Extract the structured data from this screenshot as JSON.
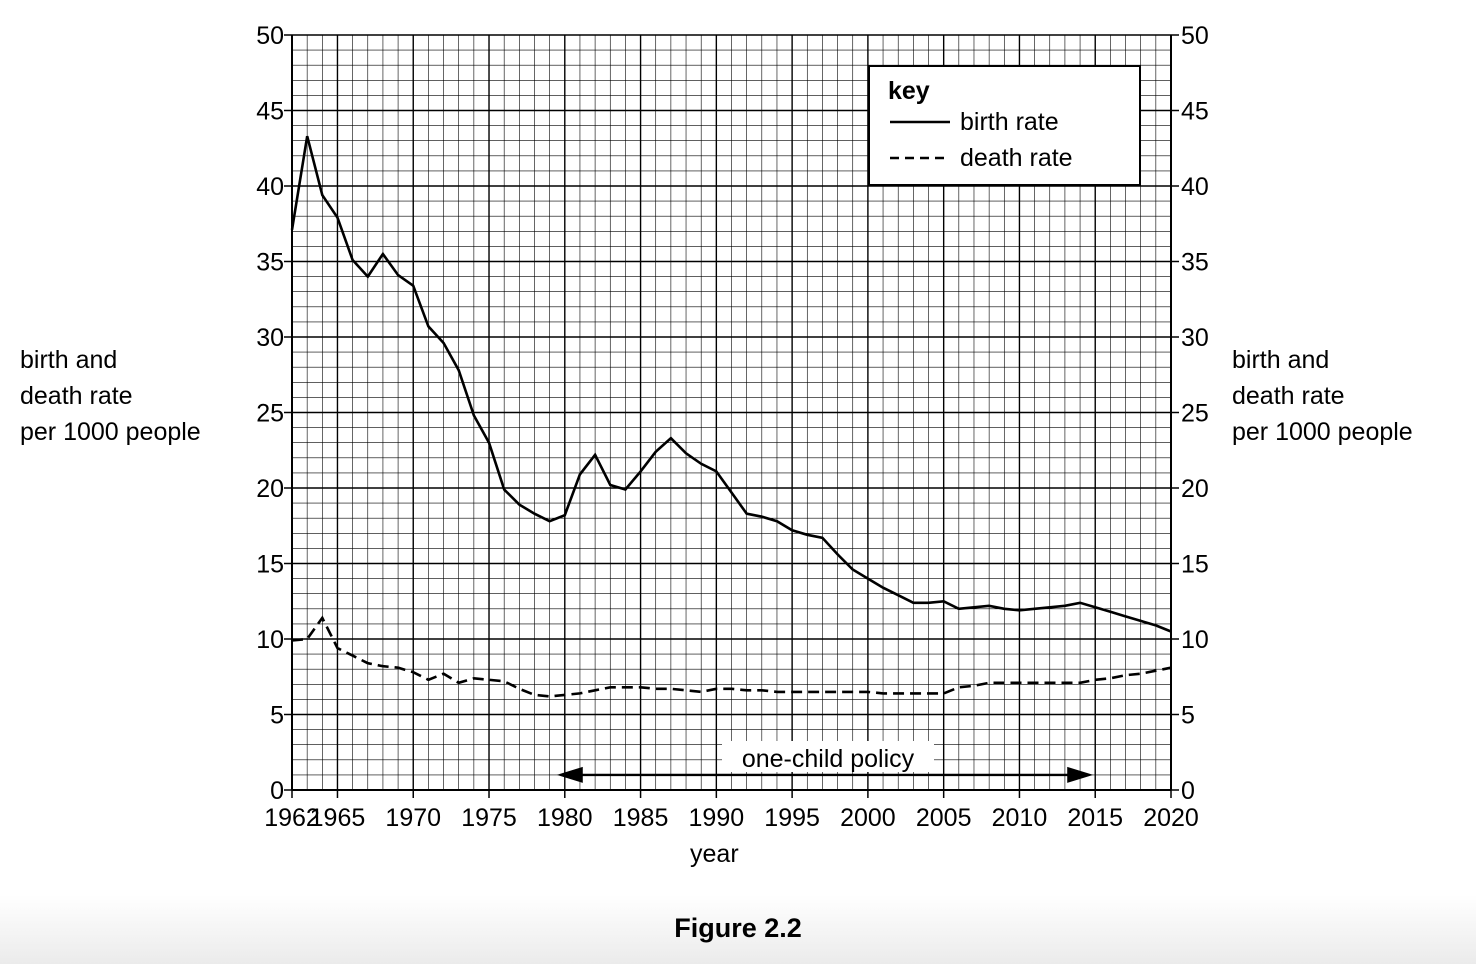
{
  "chart_data": {
    "type": "line",
    "xlabel": "year",
    "ylabel": "birth and death rate per 1000 people",
    "ylabel_lines": [
      "birth and",
      "death rate",
      "per 1000 people"
    ],
    "xlim": [
      1962,
      2020
    ],
    "ylim": [
      0,
      50
    ],
    "x_ticks": [
      1962,
      1965,
      1970,
      1975,
      1980,
      1985,
      1990,
      1995,
      2000,
      2005,
      2010,
      2015,
      2020
    ],
    "y_ticks": [
      0,
      5,
      10,
      15,
      20,
      25,
      30,
      35,
      40,
      45,
      50
    ],
    "grid": true,
    "legend": {
      "title": "key",
      "position": "top-right",
      "entries": [
        "birth rate",
        "death rate"
      ]
    },
    "series": [
      {
        "name": "birth rate",
        "style": "solid",
        "points": [
          [
            1962,
            37.1
          ],
          [
            1963,
            43.3
          ],
          [
            1964,
            39.4
          ],
          [
            1965,
            37.9
          ],
          [
            1966,
            35.1
          ],
          [
            1967,
            34.0
          ],
          [
            1968,
            35.5
          ],
          [
            1969,
            34.1
          ],
          [
            1970,
            33.4
          ],
          [
            1971,
            30.7
          ],
          [
            1972,
            29.6
          ],
          [
            1973,
            27.8
          ],
          [
            1974,
            24.8
          ],
          [
            1975,
            23.0
          ],
          [
            1976,
            19.9
          ],
          [
            1977,
            18.9
          ],
          [
            1978,
            18.3
          ],
          [
            1979,
            17.8
          ],
          [
            1980,
            18.2
          ],
          [
            1981,
            20.9
          ],
          [
            1982,
            22.2
          ],
          [
            1983,
            20.2
          ],
          [
            1984,
            19.9
          ],
          [
            1985,
            21.1
          ],
          [
            1986,
            22.4
          ],
          [
            1987,
            23.3
          ],
          [
            1988,
            22.3
          ],
          [
            1989,
            21.6
          ],
          [
            1990,
            21.1
          ],
          [
            1991,
            19.7
          ],
          [
            1992,
            18.3
          ],
          [
            1993,
            18.1
          ],
          [
            1994,
            17.8
          ],
          [
            1995,
            17.2
          ],
          [
            1996,
            16.9
          ],
          [
            1997,
            16.7
          ],
          [
            1998,
            15.6
          ],
          [
            1999,
            14.6
          ],
          [
            2000,
            14.0
          ],
          [
            2001,
            13.4
          ],
          [
            2002,
            12.9
          ],
          [
            2003,
            12.4
          ],
          [
            2004,
            12.4
          ],
          [
            2005,
            12.5
          ],
          [
            2006,
            12.0
          ],
          [
            2007,
            12.1
          ],
          [
            2008,
            12.2
          ],
          [
            2009,
            12.0
          ],
          [
            2010,
            11.9
          ],
          [
            2011,
            12.0
          ],
          [
            2012,
            12.1
          ],
          [
            2013,
            12.2
          ],
          [
            2014,
            12.4
          ],
          [
            2015,
            12.1
          ],
          [
            2016,
            11.8
          ],
          [
            2017,
            11.5
          ],
          [
            2018,
            11.2
          ],
          [
            2019,
            10.9
          ],
          [
            2020,
            10.5
          ]
        ]
      },
      {
        "name": "death rate",
        "style": "dashed",
        "points": [
          [
            1962,
            9.9
          ],
          [
            1963,
            10.0
          ],
          [
            1964,
            11.4
          ],
          [
            1965,
            9.4
          ],
          [
            1966,
            8.9
          ],
          [
            1967,
            8.4
          ],
          [
            1968,
            8.2
          ],
          [
            1969,
            8.1
          ],
          [
            1970,
            7.8
          ],
          [
            1971,
            7.3
          ],
          [
            1972,
            7.7
          ],
          [
            1973,
            7.1
          ],
          [
            1974,
            7.4
          ],
          [
            1975,
            7.3
          ],
          [
            1976,
            7.2
          ],
          [
            1977,
            6.7
          ],
          [
            1978,
            6.3
          ],
          [
            1979,
            6.2
          ],
          [
            1980,
            6.3
          ],
          [
            1981,
            6.4
          ],
          [
            1982,
            6.6
          ],
          [
            1983,
            6.8
          ],
          [
            1984,
            6.8
          ],
          [
            1985,
            6.8
          ],
          [
            1986,
            6.7
          ],
          [
            1987,
            6.7
          ],
          [
            1988,
            6.6
          ],
          [
            1989,
            6.5
          ],
          [
            1990,
            6.7
          ],
          [
            1991,
            6.7
          ],
          [
            1992,
            6.6
          ],
          [
            1993,
            6.6
          ],
          [
            1994,
            6.5
          ],
          [
            1995,
            6.5
          ],
          [
            1996,
            6.5
          ],
          [
            1997,
            6.5
          ],
          [
            1998,
            6.5
          ],
          [
            1999,
            6.5
          ],
          [
            2000,
            6.5
          ],
          [
            2001,
            6.4
          ],
          [
            2002,
            6.4
          ],
          [
            2003,
            6.4
          ],
          [
            2004,
            6.4
          ],
          [
            2005,
            6.4
          ],
          [
            2006,
            6.8
          ],
          [
            2007,
            6.9
          ],
          [
            2008,
            7.1
          ],
          [
            2009,
            7.1
          ],
          [
            2010,
            7.1
          ],
          [
            2011,
            7.1
          ],
          [
            2012,
            7.1
          ],
          [
            2013,
            7.1
          ],
          [
            2014,
            7.1
          ],
          [
            2015,
            7.3
          ],
          [
            2016,
            7.4
          ],
          [
            2017,
            7.6
          ],
          [
            2018,
            7.7
          ],
          [
            2019,
            7.9
          ],
          [
            2020,
            8.1
          ]
        ]
      }
    ],
    "annotation": {
      "label": "one-child policy",
      "from": 1980,
      "to": 2015,
      "y": 1
    }
  },
  "caption": "Figure 2.2"
}
